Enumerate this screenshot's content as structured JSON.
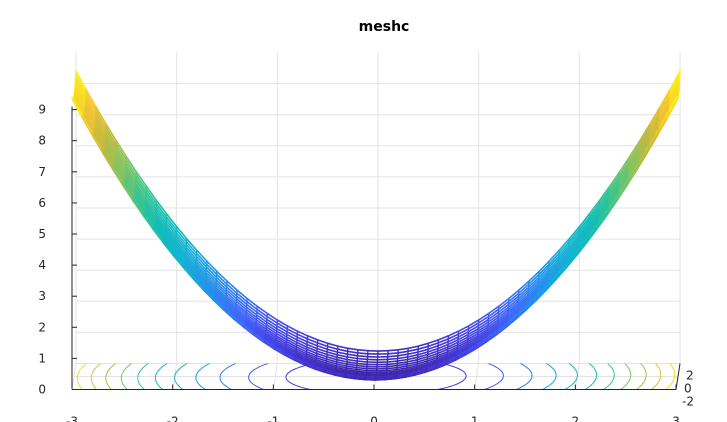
{
  "chart_data": {
    "type": "surface",
    "plot": "meshc",
    "title": "meshc",
    "function": "z = x^2 + y^2 / 10 (approx.)",
    "xlim": [
      -3,
      3
    ],
    "ylim": [
      -2,
      2
    ],
    "zlim": [
      0,
      10
    ],
    "x_ticks": [
      "-3",
      "-2",
      "-1",
      "0",
      "1",
      "2",
      "3"
    ],
    "y_ticks": [
      "-2",
      "0",
      "2"
    ],
    "z_ticks": [
      "0",
      "1",
      "2",
      "3",
      "4",
      "5",
      "6",
      "7",
      "8",
      "9"
    ],
    "z_at_x_edges": 9.4,
    "z_min": 0,
    "colormap": "parula",
    "grid": true,
    "contours_on_floor": true,
    "colors": {
      "colormap_low": "#3e26a8",
      "colormap_mid": "#12bdb9",
      "colormap_high": "#f9fb15"
    }
  }
}
